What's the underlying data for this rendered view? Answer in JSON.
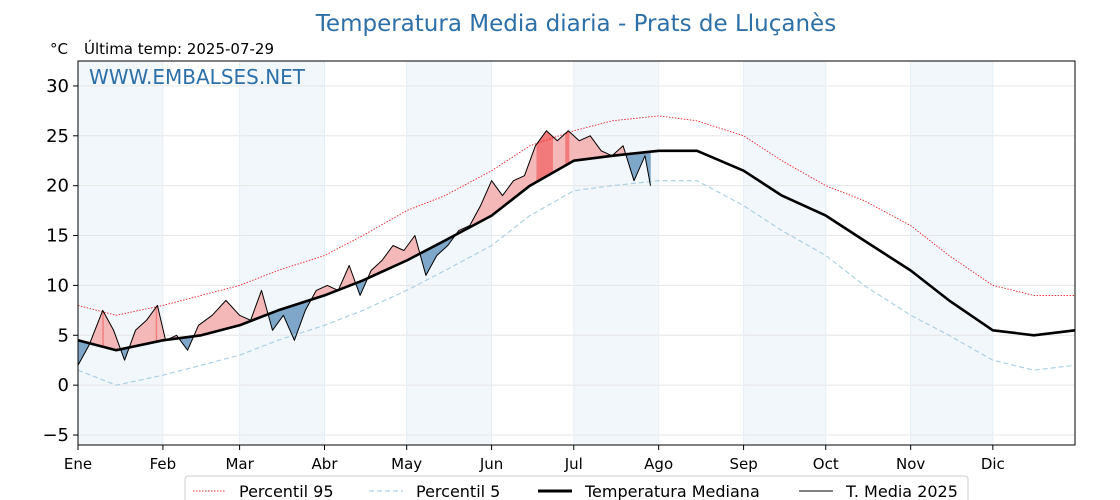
{
  "chart_data": {
    "type": "line",
    "title": "Temperatura Media diaria - Prats de Lluçanès",
    "unit_label": "°C",
    "last_temp_label": "Última temp: 2025-07-29",
    "watermark": "WWW.EMBALSES.NET",
    "ylim": [
      -6,
      32.5
    ],
    "y_ticks": [
      -5,
      0,
      5,
      10,
      15,
      20,
      25,
      30
    ],
    "grid": true,
    "legend_position": "bottom",
    "months": [
      "Ene",
      "Feb",
      "Mar",
      "Abr",
      "May",
      "Jun",
      "Jul",
      "Ago",
      "Sep",
      "Oct",
      "Nov",
      "Dic"
    ],
    "month_start_days": [
      1,
      32,
      60,
      91,
      121,
      152,
      182,
      213,
      244,
      274,
      305,
      335
    ],
    "shaded_month_indices": [
      0,
      2,
      4,
      6,
      8,
      10
    ],
    "x_range_days": [
      1,
      365
    ],
    "series": [
      {
        "name": "Percentil 95",
        "style": "dotted",
        "color": "#e8232a",
        "points": [
          [
            1,
            8.0
          ],
          [
            15,
            7.0
          ],
          [
            32,
            8.0
          ],
          [
            46,
            9.0
          ],
          [
            60,
            10.0
          ],
          [
            74,
            11.5
          ],
          [
            91,
            13.0
          ],
          [
            105,
            15.0
          ],
          [
            121,
            17.5
          ],
          [
            135,
            19.0
          ],
          [
            152,
            21.5
          ],
          [
            166,
            24.0
          ],
          [
            182,
            25.5
          ],
          [
            196,
            26.5
          ],
          [
            213,
            27.0
          ],
          [
            227,
            26.5
          ],
          [
            244,
            25.0
          ],
          [
            258,
            22.5
          ],
          [
            274,
            20.0
          ],
          [
            288,
            18.5
          ],
          [
            305,
            16.0
          ],
          [
            319,
            13.0
          ],
          [
            335,
            10.0
          ],
          [
            350,
            9.0
          ],
          [
            365,
            9.0
          ]
        ]
      },
      {
        "name": "Percentil 5",
        "style": "dashed",
        "color": "#a6cde0",
        "points": [
          [
            1,
            1.5
          ],
          [
            15,
            0.0
          ],
          [
            32,
            1.0
          ],
          [
            46,
            2.0
          ],
          [
            60,
            3.0
          ],
          [
            74,
            4.5
          ],
          [
            91,
            6.0
          ],
          [
            105,
            7.5
          ],
          [
            121,
            9.5
          ],
          [
            135,
            11.5
          ],
          [
            152,
            14.0
          ],
          [
            166,
            17.0
          ],
          [
            182,
            19.5
          ],
          [
            196,
            20.0
          ],
          [
            213,
            20.5
          ],
          [
            227,
            20.5
          ],
          [
            244,
            18.0
          ],
          [
            258,
            15.5
          ],
          [
            274,
            13.0
          ],
          [
            288,
            10.0
          ],
          [
            305,
            7.0
          ],
          [
            319,
            5.0
          ],
          [
            335,
            2.5
          ],
          [
            350,
            1.5
          ],
          [
            365,
            2.0
          ]
        ]
      },
      {
        "name": "Temperatura Mediana",
        "style": "thick",
        "color": "#000000",
        "points": [
          [
            1,
            4.5
          ],
          [
            15,
            3.5
          ],
          [
            32,
            4.5
          ],
          [
            46,
            5.0
          ],
          [
            60,
            6.0
          ],
          [
            74,
            7.5
          ],
          [
            91,
            9.0
          ],
          [
            105,
            10.5
          ],
          [
            121,
            12.5
          ],
          [
            135,
            14.5
          ],
          [
            152,
            17.0
          ],
          [
            166,
            20.0
          ],
          [
            182,
            22.5
          ],
          [
            196,
            23.0
          ],
          [
            213,
            23.5
          ],
          [
            227,
            23.5
          ],
          [
            244,
            21.5
          ],
          [
            258,
            19.0
          ],
          [
            274,
            17.0
          ],
          [
            288,
            14.5
          ],
          [
            305,
            11.5
          ],
          [
            319,
            8.5
          ],
          [
            335,
            5.5
          ],
          [
            350,
            5.0
          ],
          [
            365,
            5.5
          ]
        ]
      },
      {
        "name": "T. Media 2025",
        "style": "thin",
        "color": "#000000",
        "points": [
          [
            1,
            2.0
          ],
          [
            5,
            4.0
          ],
          [
            10,
            7.5
          ],
          [
            14,
            5.5
          ],
          [
            18,
            2.5
          ],
          [
            22,
            5.5
          ],
          [
            26,
            6.5
          ],
          [
            30,
            8.0
          ],
          [
            33,
            4.5
          ],
          [
            37,
            5.0
          ],
          [
            41,
            3.5
          ],
          [
            45,
            6.0
          ],
          [
            50,
            7.0
          ],
          [
            55,
            8.5
          ],
          [
            60,
            7.0
          ],
          [
            64,
            6.5
          ],
          [
            68,
            9.5
          ],
          [
            72,
            5.5
          ],
          [
            76,
            7.0
          ],
          [
            80,
            4.5
          ],
          [
            84,
            7.5
          ],
          [
            88,
            9.5
          ],
          [
            92,
            10.0
          ],
          [
            96,
            9.5
          ],
          [
            100,
            12.0
          ],
          [
            104,
            9.0
          ],
          [
            108,
            11.5
          ],
          [
            112,
            12.5
          ],
          [
            116,
            14.0
          ],
          [
            120,
            13.5
          ],
          [
            124,
            15.0
          ],
          [
            128,
            11.0
          ],
          [
            132,
            13.0
          ],
          [
            136,
            14.0
          ],
          [
            140,
            15.5
          ],
          [
            144,
            16.0
          ],
          [
            148,
            18.0
          ],
          [
            152,
            20.5
          ],
          [
            156,
            19.0
          ],
          [
            160,
            20.5
          ],
          [
            164,
            21.0
          ],
          [
            168,
            24.0
          ],
          [
            172,
            25.5
          ],
          [
            176,
            24.5
          ],
          [
            180,
            25.5
          ],
          [
            184,
            24.5
          ],
          [
            188,
            25.0
          ],
          [
            192,
            23.5
          ],
          [
            196,
            23.0
          ],
          [
            200,
            24.0
          ],
          [
            204,
            20.5
          ],
          [
            208,
            23.0
          ],
          [
            210,
            20.0
          ]
        ]
      }
    ]
  }
}
